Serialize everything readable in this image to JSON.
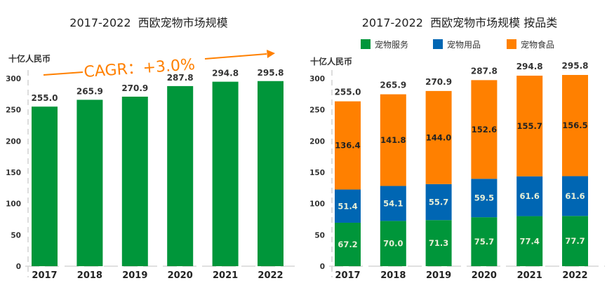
{
  "colors": {
    "services": "#00963A",
    "supplies": "#0066B3",
    "food": "#FF8000",
    "total": "#00963A",
    "cagr": "#FF8000"
  },
  "chart_data": [
    {
      "type": "bar",
      "title": "2017-2022  西欧宠物市场规模",
      "ylabel": "十亿人民币",
      "xlabel": "",
      "categories": [
        "2017",
        "2018",
        "2019",
        "2020",
        "2021",
        "2022"
      ],
      "values": [
        255.0,
        265.9,
        270.9,
        287.8,
        294.8,
        295.8
      ],
      "value_labels": [
        "255.0",
        "265.9",
        "270.9",
        "287.8",
        "294.8",
        "295.8"
      ],
      "ylim": [
        0,
        300
      ],
      "yticks": [
        "0",
        "50",
        "100",
        "150",
        "200",
        "250",
        "300"
      ],
      "grid": false,
      "annotation": "CAGR：+3.0%"
    },
    {
      "type": "bar",
      "stacked": true,
      "title": "2017-2022  西欧宠物市场规模 按品类",
      "ylabel": "十亿人民币",
      "xlabel": "",
      "categories": [
        "2017",
        "2018",
        "2019",
        "2020",
        "2021",
        "2022"
      ],
      "legend_position": "top",
      "series": [
        {
          "name": "宠物服务",
          "key": "services",
          "values": [
            67.2,
            70.0,
            71.3,
            75.7,
            77.4,
            77.7
          ],
          "labels": [
            "67.2",
            "70.0",
            "71.3",
            "75.7",
            "77.4",
            "77.7"
          ]
        },
        {
          "name": "宠物用品",
          "key": "supplies",
          "values": [
            51.4,
            54.1,
            55.7,
            59.5,
            61.6,
            61.6
          ],
          "labels": [
            "51.4",
            "54.1",
            "55.7",
            "59.5",
            "61.6",
            "61.6"
          ]
        },
        {
          "name": "宠物食品",
          "key": "food",
          "values": [
            136.4,
            141.8,
            144.0,
            152.6,
            155.7,
            156.5
          ],
          "labels": [
            "136.4",
            "141.8",
            "144.0",
            "152.6",
            "155.7",
            "156.5"
          ]
        }
      ],
      "totals": [
        "255.0",
        "265.9",
        "270.9",
        "287.8",
        "294.8",
        "295.8"
      ],
      "ylim": [
        0,
        300
      ],
      "yticks": [
        "0",
        "50",
        "100",
        "150",
        "200",
        "250",
        "300"
      ],
      "grid": false
    }
  ]
}
